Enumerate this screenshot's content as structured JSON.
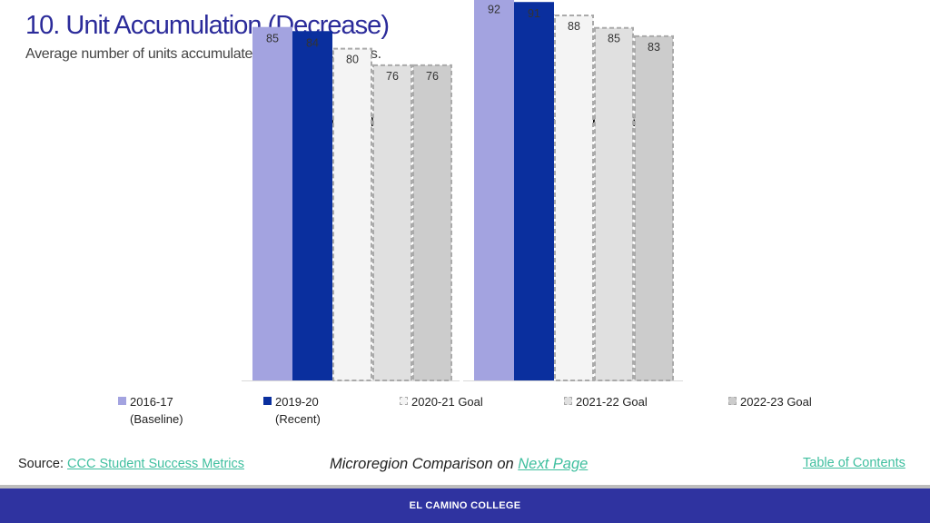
{
  "header": {
    "title": "10. Unit Accumulation (Decrease)",
    "subtitle": "Average number of units accumulated by degree earners."
  },
  "chart_data": {
    "type": "bar",
    "categories": [
      "Overall",
      "Students with Disabilities"
    ],
    "series": [
      {
        "name": "2016-17 (Baseline)",
        "label_lines": [
          "2016-17",
          "(Baseline)"
        ],
        "values": [
          85,
          92
        ],
        "color": "#A3A3E0",
        "style": "solid"
      },
      {
        "name": "2019-20 (Recent)",
        "label_lines": [
          "2019-20",
          "(Recent)"
        ],
        "values": [
          84,
          91
        ],
        "color": "#0A2F9E",
        "style": "solid"
      },
      {
        "name": "2020-21 Goal",
        "label_lines": [
          "2020-21 Goal"
        ],
        "values": [
          80,
          88
        ],
        "color": "#F4F4F4",
        "style": "dashed"
      },
      {
        "name": "2021-22 Goal",
        "label_lines": [
          "2021-22 Goal"
        ],
        "values": [
          76,
          85
        ],
        "color": "#E0E0E0",
        "style": "dashed"
      },
      {
        "name": "2022-23 Goal",
        "label_lines": [
          "2022-23 Goal"
        ],
        "values": [
          76,
          83
        ],
        "color": "#CCCCCC",
        "style": "dashed"
      }
    ],
    "ylim": [
      0,
      100
    ],
    "grid": false,
    "legend_position": "bottom",
    "dashed_border_color": "#AAAAAA"
  },
  "footer": {
    "source_prefix": "Source: ",
    "source_link": "CCC Student Success Metrics",
    "micro_prefix": "Microregion Comparison on ",
    "micro_link": "Next Page",
    "toc": "Table of Contents",
    "college": "EL CAMINO COLLEGE"
  }
}
